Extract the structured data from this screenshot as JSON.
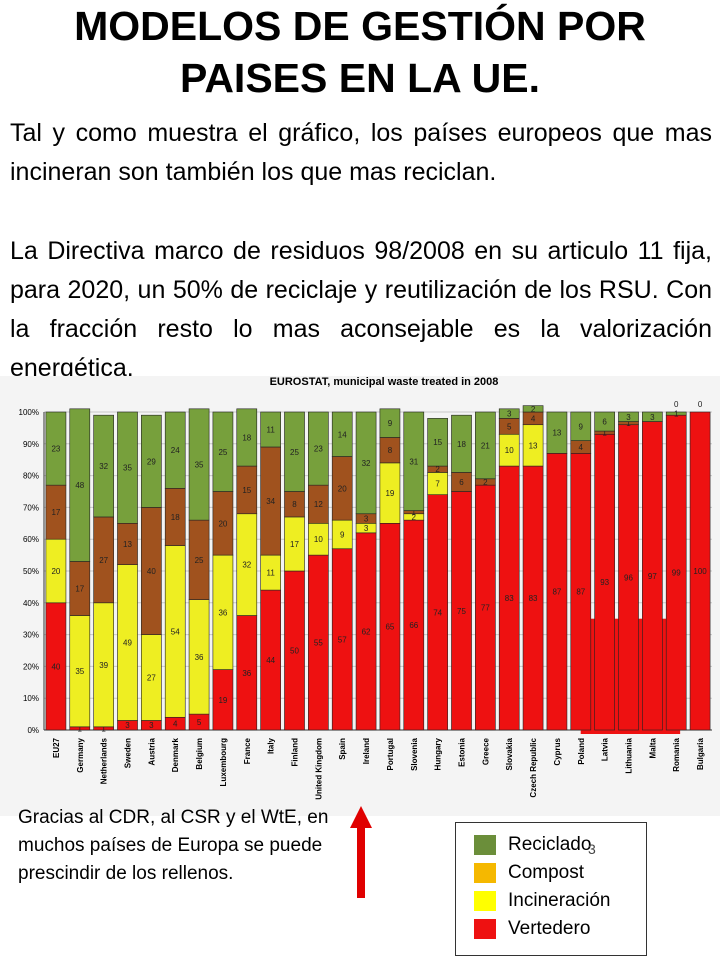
{
  "slide": {
    "title_line1": "MODELOS DE GESTIÓN POR",
    "title_line2": "PAISES EN LA UE.",
    "paragraph1": "Tal y como muestra el gráfico, los países europeos que mas incineran son también los que mas reciclan.",
    "paragraph2": "La Directiva marco de residuos 98/2008 en su articulo 11 fija, para 2020, un 50% de reciclaje y reutilización de los RSU. Con la fracción resto lo mas aconsejable es la valorización energética.",
    "caption": "Gracias al CDR, al CSR y el WtE, en muchos países de Europa se puede prescindir de los rellenos.",
    "slide_number": "3"
  },
  "legend": {
    "items": [
      {
        "label": "Reciclado",
        "color": "#6b8e3a"
      },
      {
        "label": "Compost",
        "color": "#f5b800"
      },
      {
        "label": "Incineración",
        "color": "#ffff00"
      },
      {
        "label": "Vertedero",
        "color": "#ee1111"
      }
    ]
  },
  "chart_data": {
    "type": "bar",
    "stacked": true,
    "title": "EUROSTAT, municipal waste treated in 2008",
    "ylim": [
      0,
      100
    ],
    "yticks": [
      "0%",
      "10%",
      "20%",
      "30%",
      "40%",
      "50%",
      "60%",
      "70%",
      "80%",
      "90%",
      "100%"
    ],
    "grid": true,
    "categories": [
      "EU27",
      "Germany",
      "Netherlands",
      "Sweden",
      "Austria",
      "Denmark",
      "Belgium",
      "Luxembourg",
      "France",
      "Italy",
      "Finland",
      "United Kingdom",
      "Spain",
      "Ireland",
      "Portugal",
      "Slovenia",
      "Hungary",
      "Estonia",
      "Greece",
      "Slovakia",
      "Czech Republic",
      "Cyprus",
      "Poland",
      "Latvia",
      "Lithuania",
      "Malta",
      "Romania",
      "Bulgaria"
    ],
    "series": [
      {
        "color": "#ee1111",
        "values": [
          40,
          1,
          1,
          3,
          3,
          4,
          5,
          19,
          36,
          44,
          50,
          55,
          57,
          62,
          65,
          66,
          74,
          75,
          77,
          83,
          83,
          87,
          87,
          93,
          96,
          97,
          99,
          100
        ]
      },
      {
        "color": "#eeee22",
        "values": [
          20,
          35,
          39,
          49,
          27,
          54,
          36,
          36,
          32,
          11,
          17,
          10,
          9,
          3,
          19,
          2,
          7,
          0,
          0,
          10,
          13,
          0,
          0,
          0,
          0,
          0,
          0,
          0
        ]
      },
      {
        "color": "#a0521e",
        "values": [
          17,
          17,
          27,
          13,
          40,
          18,
          25,
          20,
          15,
          34,
          8,
          12,
          20,
          3,
          8,
          1,
          2,
          6,
          2,
          5,
          4,
          0,
          4,
          1,
          1,
          0,
          0,
          0
        ]
      },
      {
        "color": "#77a03c",
        "values": [
          23,
          48,
          32,
          35,
          29,
          24,
          35,
          25,
          18,
          11,
          25,
          23,
          14,
          32,
          9,
          31,
          15,
          18,
          21,
          3,
          2,
          13,
          9,
          6,
          3,
          3,
          1,
          0
        ]
      }
    ],
    "top_labels": [
      "",
      "",
      "",
      "",
      "",
      "",
      "",
      "",
      "",
      "",
      "",
      "",
      "",
      "",
      "",
      "",
      "",
      "",
      "",
      "",
      "",
      "",
      "",
      "",
      "",
      "",
      "0",
      "0"
    ],
    "overlay_highlight": {
      "from": "Latvia",
      "to": "Bulgaria"
    }
  }
}
